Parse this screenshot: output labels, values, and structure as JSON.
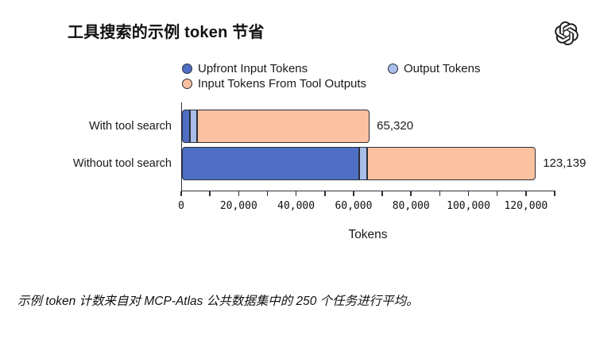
{
  "header": {
    "title": "工具搜索的示例 token 节省",
    "logo_icon": "openai-logo"
  },
  "chart_data": {
    "type": "bar",
    "orientation": "horizontal",
    "stacked": true,
    "categories": [
      "With tool search",
      "Without tool search"
    ],
    "series": [
      {
        "name": "Upfront Input Tokens",
        "color": "#4E6FC3",
        "values": [
          2800,
          61570
        ]
      },
      {
        "name": "Output Tokens",
        "color": "#A9BEE8",
        "values": [
          2500,
          2800
        ]
      },
      {
        "name": "Input Tokens From Tool Outputs",
        "color": "#FCC1A0",
        "values": [
          60020,
          58769
        ]
      }
    ],
    "totals": [
      65320,
      123139
    ],
    "total_labels": [
      "65,320",
      "123,139"
    ],
    "title": "工具搜索的示例 token 节省",
    "xlabel": "Tokens",
    "ylabel": "",
    "xlim": [
      0,
      130000
    ],
    "x_major_ticks": [
      0,
      20000,
      40000,
      60000,
      80000,
      100000,
      120000
    ],
    "x_major_tick_labels": [
      "0",
      "20,000",
      "40,000",
      "60,000",
      "80,000",
      "100,000",
      "120,000"
    ],
    "x_minor_tick_interval": 10000,
    "grid": false,
    "legend_position": "top",
    "bar_edge_color": "#2a2f3a"
  },
  "footnote": "示例 token 计数来自对 MCP-Atlas 公共数据集中的 250 个任务进行平均。"
}
